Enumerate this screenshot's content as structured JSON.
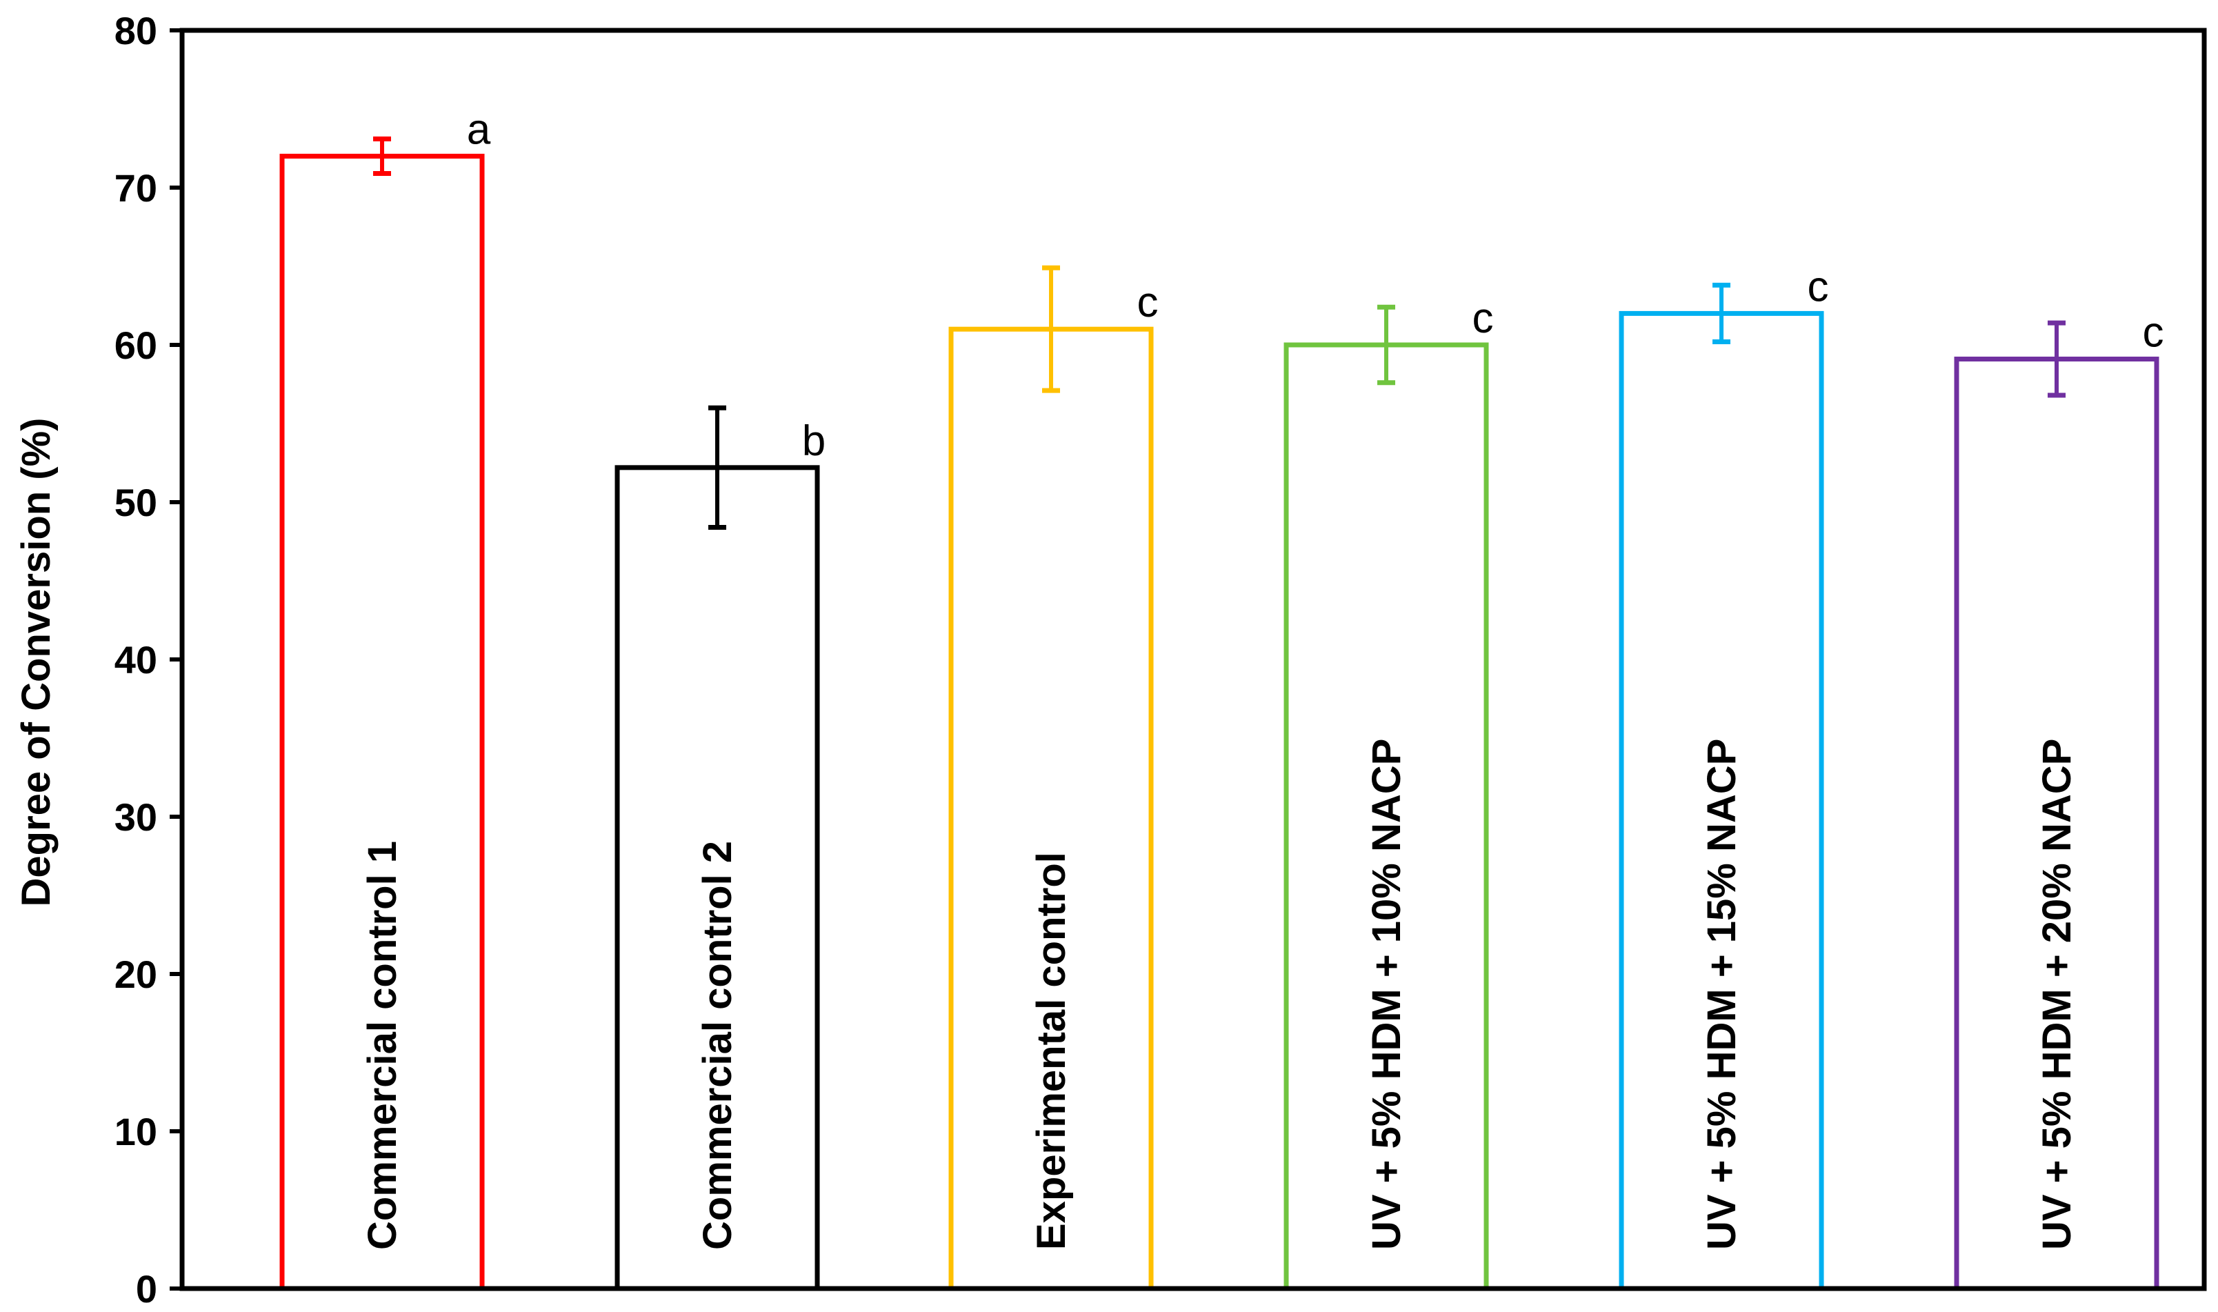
{
  "chart_data": {
    "type": "bar",
    "title": "",
    "xlabel": "",
    "ylabel": "Degree of Conversion (%)",
    "ylim": [
      0,
      80
    ],
    "yticks": [
      0,
      10,
      20,
      30,
      40,
      50,
      60,
      70,
      80
    ],
    "grid": false,
    "legend": "none",
    "categories": [
      "Commercial control 1",
      "Commercial control 2",
      "Experimental control",
      "UV + 5% HDM + 10% NACP",
      "UV + 5% HDM + 15% NACP",
      "UV + 5% HDM + 20% NACP"
    ],
    "values": [
      72,
      52.2,
      61,
      60,
      62,
      59.1
    ],
    "errors": [
      1.1,
      3.8,
      3.9,
      2.4,
      1.8,
      2.3
    ],
    "significance": [
      "a",
      "b",
      "c",
      "c",
      "c",
      "c"
    ],
    "colors": [
      "#ff0000",
      "#000000",
      "#ffc000",
      "#70c43f",
      "#00b0f0",
      "#7030a0"
    ]
  }
}
